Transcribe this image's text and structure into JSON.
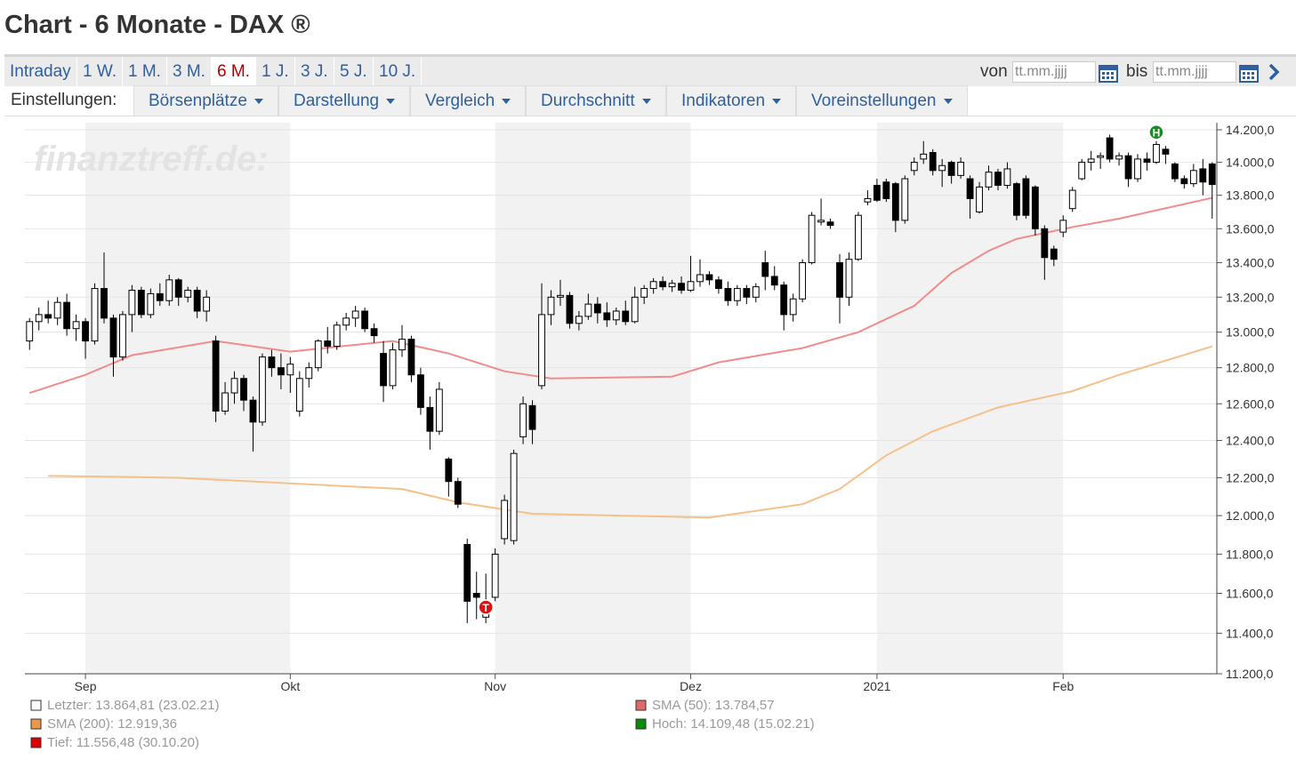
{
  "header": {
    "title": "Chart - 6 Monate - DAX ®"
  },
  "tabs": {
    "items": [
      "Intraday",
      "1 W.",
      "1 M.",
      "3 M.",
      "6 M.",
      "1 J.",
      "3 J.",
      "5 J.",
      "10 J."
    ],
    "active": 4
  },
  "date_range": {
    "from_label": "von",
    "from_placeholder": "tt.mm.jjjj",
    "to_label": "bis",
    "to_placeholder": "tt.mm.jjjj"
  },
  "settings": {
    "label": "Einstellungen:",
    "menus": [
      "Börsenplätze",
      "Darstellung",
      "Vergleich",
      "Durchschnitt",
      "Indikatoren",
      "Voreinstellungen"
    ]
  },
  "chart_data": {
    "type": "candlestick",
    "watermark": "finanztreff.de:",
    "log_scale": true,
    "grid": true,
    "up_color": "#ffffff",
    "down_color": "#000000",
    "shade_color": "#f2f2f2",
    "ylim": [
      11200,
      14200
    ],
    "yticks": [
      {
        "value": 14200,
        "label": "14.200,0"
      },
      {
        "value": 14000,
        "label": "14.000,0"
      },
      {
        "value": 13800,
        "label": "13.800,0"
      },
      {
        "value": 13600,
        "label": "13.600,0"
      },
      {
        "value": 13400,
        "label": "13.400,0"
      },
      {
        "value": 13200,
        "label": "13.200,0"
      },
      {
        "value": 13000,
        "label": "13.000,0"
      },
      {
        "value": 12800,
        "label": "12.800,0"
      },
      {
        "value": 12600,
        "label": "12.600,0"
      },
      {
        "value": 12400,
        "label": "12.400,0"
      },
      {
        "value": 12200,
        "label": "12.200,0"
      },
      {
        "value": 12000,
        "label": "12.000,0"
      },
      {
        "value": 11800,
        "label": "11.800,0"
      },
      {
        "value": 11600,
        "label": "11.600,0"
      },
      {
        "value": 11400,
        "label": "11.400,0"
      },
      {
        "value": 11200,
        "label": "11.200,0"
      }
    ],
    "xlim": [
      -0.5,
      127.5
    ],
    "xticks": [
      {
        "value": 6,
        "label": "Sep"
      },
      {
        "value": 28,
        "label": "Okt"
      },
      {
        "value": 50,
        "label": "Nov"
      },
      {
        "value": 71,
        "label": "Dez"
      },
      {
        "value": 91,
        "label": "2021"
      },
      {
        "value": 111,
        "label": "Feb"
      }
    ],
    "ohlc": [
      [
        12950,
        13080,
        12900,
        13060
      ],
      [
        13060,
        13140,
        13010,
        13100
      ],
      [
        13100,
        13180,
        13050,
        13080
      ],
      [
        13080,
        13200,
        13040,
        13170
      ],
      [
        13170,
        13220,
        12980,
        13020
      ],
      [
        13020,
        13100,
        12950,
        13060
      ],
      [
        13060,
        13080,
        12850,
        12950
      ],
      [
        12950,
        13280,
        12930,
        13250
      ],
      [
        13250,
        13460,
        13050,
        13080
      ],
      [
        13080,
        13100,
        12750,
        12860
      ],
      [
        12860,
        13120,
        12840,
        13100
      ],
      [
        13100,
        13270,
        13000,
        13240
      ],
      [
        13240,
        13260,
        13080,
        13100
      ],
      [
        13100,
        13250,
        13080,
        13220
      ],
      [
        13220,
        13280,
        13150,
        13180
      ],
      [
        13180,
        13330,
        13150,
        13300
      ],
      [
        13300,
        13310,
        13150,
        13200
      ],
      [
        13200,
        13260,
        13170,
        13240
      ],
      [
        13240,
        13260,
        13080,
        13120
      ],
      [
        13120,
        13240,
        13060,
        13200
      ],
      [
        12950,
        12980,
        12500,
        12560
      ],
      [
        12560,
        12720,
        12540,
        12660
      ],
      [
        12660,
        12780,
        12600,
        12740
      ],
      [
        12740,
        12760,
        12560,
        12620
      ],
      [
        12620,
        12640,
        12340,
        12500
      ],
      [
        12500,
        12880,
        12480,
        12860
      ],
      [
        12860,
        12900,
        12750,
        12800
      ],
      [
        12800,
        12880,
        12680,
        12760
      ],
      [
        12760,
        12860,
        12660,
        12820
      ],
      [
        12560,
        12780,
        12530,
        12740
      ],
      [
        12740,
        12830,
        12690,
        12800
      ],
      [
        12800,
        12960,
        12780,
        12950
      ],
      [
        12950,
        13030,
        12880,
        12920
      ],
      [
        12920,
        13060,
        12900,
        13040
      ],
      [
        13040,
        13110,
        13010,
        13080
      ],
      [
        13080,
        13150,
        13030,
        13120
      ],
      [
        13120,
        13140,
        13000,
        13020
      ],
      [
        13020,
        13050,
        12940,
        12980
      ],
      [
        12880,
        12950,
        12610,
        12700
      ],
      [
        12700,
        12940,
        12680,
        12900
      ],
      [
        12900,
        13040,
        12860,
        12960
      ],
      [
        12960,
        12980,
        12720,
        12760
      ],
      [
        12760,
        12800,
        12540,
        12580
      ],
      [
        12580,
        12640,
        12350,
        12450
      ],
      [
        12450,
        12720,
        12430,
        12680
      ],
      [
        12300,
        12310,
        12100,
        12180
      ],
      [
        12180,
        12200,
        12040,
        12060
      ],
      [
        11850,
        11880,
        11450,
        11560
      ],
      [
        11600,
        11710,
        11470,
        11580
      ],
      [
        11480,
        11700,
        11450,
        11556.48
      ],
      [
        11580,
        11830,
        11560,
        11800
      ],
      [
        11880,
        12110,
        11850,
        12080
      ],
      [
        11870,
        12350,
        11850,
        12330
      ],
      [
        12420,
        12640,
        12380,
        12600
      ],
      [
        12590,
        12620,
        12380,
        12460
      ],
      [
        12700,
        13280,
        12680,
        13100
      ],
      [
        13100,
        13240,
        13040,
        13200
      ],
      [
        13200,
        13300,
        13150,
        13210
      ],
      [
        13210,
        13230,
        13020,
        13050
      ],
      [
        13050,
        13120,
        13010,
        13090
      ],
      [
        13090,
        13220,
        13070,
        13160
      ],
      [
        13160,
        13200,
        13050,
        13110
      ],
      [
        13110,
        13170,
        13030,
        13070
      ],
      [
        13070,
        13140,
        13040,
        13120
      ],
      [
        13120,
        13180,
        13040,
        13060
      ],
      [
        13060,
        13260,
        13050,
        13200
      ],
      [
        13200,
        13270,
        13160,
        13250
      ],
      [
        13250,
        13310,
        13220,
        13290
      ],
      [
        13290,
        13320,
        13240,
        13260
      ],
      [
        13260,
        13300,
        13230,
        13280
      ],
      [
        13280,
        13320,
        13220,
        13240
      ],
      [
        13240,
        13440,
        13230,
        13290
      ],
      [
        13290,
        13420,
        13260,
        13330
      ],
      [
        13330,
        13350,
        13270,
        13300
      ],
      [
        13300,
        13320,
        13220,
        13250
      ],
      [
        13250,
        13290,
        13150,
        13180
      ],
      [
        13180,
        13270,
        13150,
        13250
      ],
      [
        13250,
        13270,
        13160,
        13200
      ],
      [
        13200,
        13280,
        13170,
        13260
      ],
      [
        13400,
        13470,
        13240,
        13320
      ],
      [
        13320,
        13380,
        13240,
        13270
      ],
      [
        13270,
        13290,
        13010,
        13100
      ],
      [
        13100,
        13220,
        13060,
        13190
      ],
      [
        13190,
        13420,
        13170,
        13400
      ],
      [
        13400,
        13700,
        13390,
        13680
      ],
      [
        13640,
        13780,
        13620,
        13650
      ],
      [
        13640,
        13660,
        13600,
        13620
      ],
      [
        13400,
        13450,
        13050,
        13200
      ],
      [
        13200,
        13460,
        13150,
        13420
      ],
      [
        13420,
        13700,
        13410,
        13680
      ],
      [
        13760,
        13830,
        13740,
        13780
      ],
      [
        13860,
        13900,
        13760,
        13770
      ],
      [
        13880,
        13900,
        13760,
        13780
      ],
      [
        13870,
        13880,
        13580,
        13650
      ],
      [
        13650,
        13920,
        13630,
        13900
      ],
      [
        13950,
        14030,
        13920,
        14000
      ],
      [
        14020,
        14130,
        13990,
        14050
      ],
      [
        14060,
        14080,
        13920,
        13950
      ],
      [
        13950,
        14020,
        13850,
        13980
      ],
      [
        14000,
        14010,
        13870,
        13920
      ],
      [
        13920,
        14030,
        13900,
        14000
      ],
      [
        13900,
        13920,
        13660,
        13780
      ],
      [
        13700,
        13880,
        13690,
        13850
      ],
      [
        13850,
        13980,
        13830,
        13940
      ],
      [
        13940,
        13960,
        13830,
        13860
      ],
      [
        13860,
        14000,
        13840,
        13960
      ],
      [
        13870,
        13880,
        13650,
        13680
      ],
      [
        13900,
        13920,
        13660,
        13680
      ],
      [
        13850,
        13860,
        13560,
        13600
      ],
      [
        13600,
        13620,
        13300,
        13430
      ],
      [
        13480,
        13500,
        13380,
        13420
      ],
      [
        13580,
        13680,
        13550,
        13650
      ],
      [
        13720,
        13850,
        13700,
        13830
      ],
      [
        13900,
        14020,
        13890,
        14000
      ],
      [
        14000,
        14070,
        13950,
        14020
      ],
      [
        14030,
        14060,
        13960,
        14040
      ],
      [
        14150,
        14170,
        14000,
        14020
      ],
      [
        14020,
        14060,
        13980,
        14040
      ],
      [
        14040,
        14060,
        13850,
        13900
      ],
      [
        13900,
        14050,
        13880,
        14020
      ],
      [
        14020,
        14060,
        13950,
        14000
      ],
      [
        14000,
        14130,
        13990,
        14109.48
      ],
      [
        14080,
        14100,
        13990,
        14050
      ],
      [
        13990,
        14000,
        13880,
        13900
      ],
      [
        13900,
        13920,
        13840,
        13870
      ],
      [
        13870,
        13990,
        13850,
        13950
      ],
      [
        13960,
        14020,
        13800,
        13880
      ],
      [
        13990,
        14000,
        13660,
        13864.81
      ]
    ],
    "lines": [
      {
        "color": "#f08c8c",
        "x": [
          0,
          6,
          11,
          20,
          28,
          39,
          45,
          51,
          56,
          69,
          74,
          83,
          89,
          95,
          99,
          103,
          106,
          112,
          117,
          127
        ],
        "values": [
          12660,
          12760,
          12870,
          12950,
          12890,
          12950,
          12880,
          12780,
          12740,
          12750,
          12830,
          12910,
          13000,
          13150,
          13340,
          13470,
          13540,
          13610,
          13660,
          13784.57
        ]
      },
      {
        "color": "#f5c08a",
        "x": [
          2,
          16,
          28,
          40,
          46,
          54,
          73,
          83,
          87,
          92,
          97,
          104,
          112,
          117,
          127
        ],
        "values": [
          12210,
          12200,
          12170,
          12140,
          12070,
          12010,
          11990,
          12060,
          12140,
          12320,
          12450,
          12580,
          12670,
          12760,
          12919.36
        ]
      }
    ],
    "low_marker": "T",
    "low_marker_color": "#dd1111",
    "high_marker": "H",
    "high_marker_color": "#1a8a2a",
    "legend": [
      {
        "text": "Letzter: 13.864,81 (23.02.21)",
        "color": "#ffffff"
      },
      {
        "text": "SMA (50): 13.784,57",
        "color": "#e06a6a"
      },
      {
        "text": "SMA (200): 12.919,36",
        "color": "#e89a4a"
      },
      {
        "text": "Hoch: 14.109,48 (15.02.21)",
        "color": "#0a8a0a"
      },
      {
        "text": "Tief: 11.556,48 (30.10.20)",
        "color": "#dd0000"
      }
    ]
  }
}
